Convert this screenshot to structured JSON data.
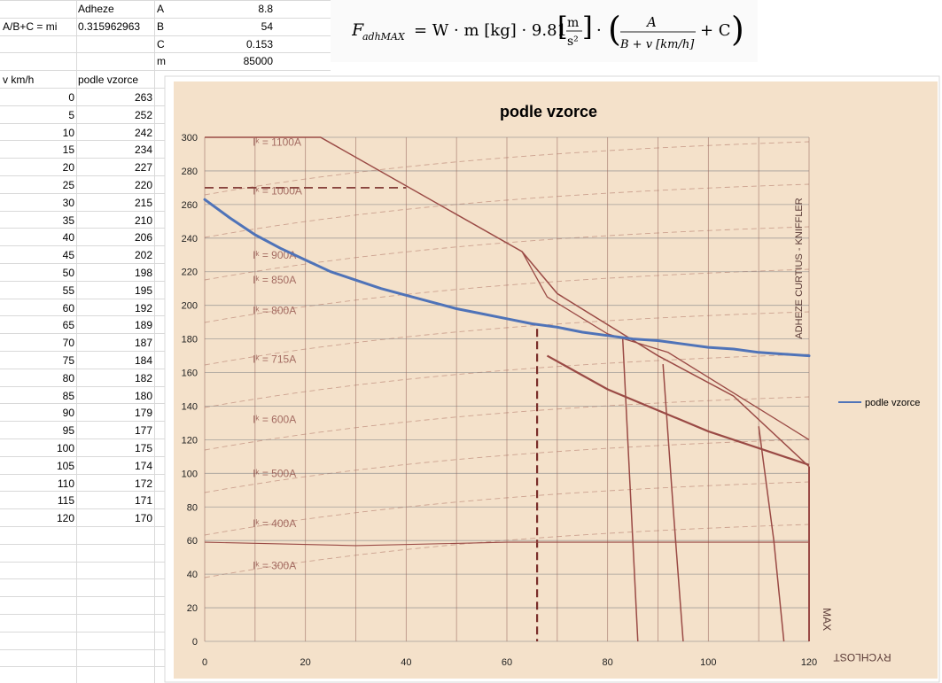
{
  "sheet": {
    "header_adheze": "Adheze",
    "label_mi": "A/B+C = mi",
    "value_mi": "0.315962963",
    "params": [
      {
        "name": "A",
        "value": "8.8"
      },
      {
        "name": "B",
        "value": "54"
      },
      {
        "name": "C",
        "value": "0.153"
      },
      {
        "name": "m",
        "value": "85000"
      }
    ],
    "col_v": "v km/h",
    "col_podle": "podle vzorce",
    "rows": [
      {
        "v": "0",
        "f": "263"
      },
      {
        "v": "5",
        "f": "252"
      },
      {
        "v": "10",
        "f": "242"
      },
      {
        "v": "15",
        "f": "234"
      },
      {
        "v": "20",
        "f": "227"
      },
      {
        "v": "25",
        "f": "220"
      },
      {
        "v": "30",
        "f": "215"
      },
      {
        "v": "35",
        "f": "210"
      },
      {
        "v": "40",
        "f": "206"
      },
      {
        "v": "45",
        "f": "202"
      },
      {
        "v": "50",
        "f": "198"
      },
      {
        "v": "55",
        "f": "195"
      },
      {
        "v": "60",
        "f": "192"
      },
      {
        "v": "65",
        "f": "189"
      },
      {
        "v": "70",
        "f": "187"
      },
      {
        "v": "75",
        "f": "184"
      },
      {
        "v": "80",
        "f": "182"
      },
      {
        "v": "85",
        "f": "180"
      },
      {
        "v": "90",
        "f": "179"
      },
      {
        "v": "95",
        "f": "177"
      },
      {
        "v": "100",
        "f": "175"
      },
      {
        "v": "105",
        "f": "174"
      },
      {
        "v": "110",
        "f": "172"
      },
      {
        "v": "115",
        "f": "171"
      },
      {
        "v": "120",
        "f": "170"
      }
    ]
  },
  "formula": {
    "lhs": "F",
    "lhs_sub": "adhMAX",
    "eq": "= W · m [kg] · 9.81",
    "unit_top": "m",
    "unit_bottom": "s²",
    "frac_top": "A",
    "frac_bottom": "B + v [km/h]",
    "tail": "+ C"
  },
  "chart_data": {
    "type": "line",
    "title": "podle vzorce",
    "x": [
      0,
      5,
      10,
      15,
      20,
      25,
      30,
      35,
      40,
      45,
      50,
      55,
      60,
      65,
      70,
      75,
      80,
      85,
      90,
      95,
      100,
      105,
      110,
      115,
      120
    ],
    "series": [
      {
        "name": "podle vzorce",
        "values": [
          263,
          252,
          242,
          234,
          227,
          220,
          215,
          210,
          206,
          202,
          198,
          195,
          192,
          189,
          187,
          184,
          182,
          180,
          179,
          177,
          175,
          174,
          172,
          171,
          170
        ]
      }
    ],
    "xlim": [
      0,
      120
    ],
    "ylim": [
      0,
      300
    ],
    "x_ticks": [
      0,
      20,
      40,
      60,
      80,
      100,
      120
    ],
    "y_ticks": [
      0,
      20,
      40,
      60,
      80,
      100,
      120,
      140,
      160,
      180,
      200,
      220,
      240,
      260,
      280,
      300
    ],
    "legend_position": "right",
    "grid": true,
    "colors": {
      "series": "#4f73b8",
      "background": "#f4e1ca",
      "chart_lines": "#9a4a45",
      "scan_lines": "#8a4540"
    },
    "background_scan_labels": {
      "rychlost": "RYCHLOST",
      "max": "MAX",
      "adheze": "ADHEZE CURTIUS - KNIFFLER",
      "currents": [
        "Iᵏ = 1100A",
        "Iᵏ = 1000A",
        "Iᵏ = 900A",
        "Iᵏ = 850A",
        "Iᵏ = 800A",
        "Iᵏ = 715A",
        "Iᵏ = 600A",
        "Iᵏ = 500A",
        "Iᵏ = 400A",
        "Iᵏ = 300A"
      ]
    }
  }
}
